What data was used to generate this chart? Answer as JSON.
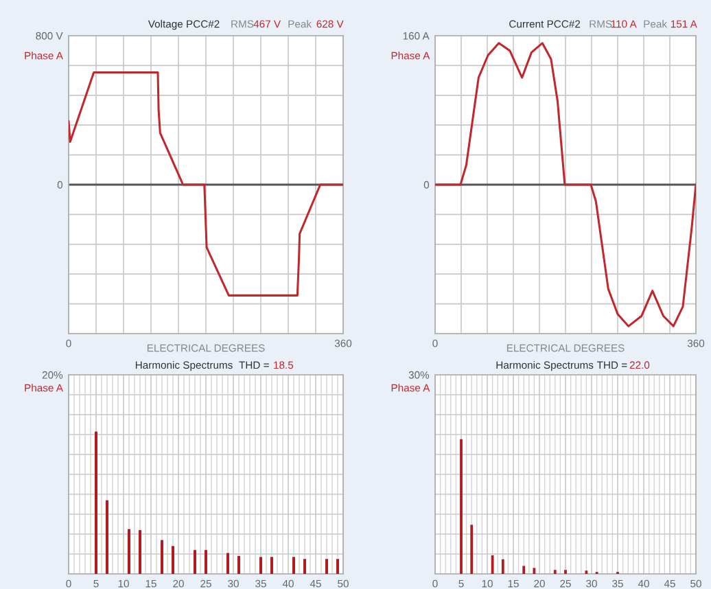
{
  "chart_data": [
    {
      "type": "line",
      "title": "Voltage PCC#2",
      "ylabel": "Phase A",
      "xlabel": "ELECTRICAL DEGREES",
      "annotations": [
        "RMS",
        "467 V",
        "Peak",
        "628 V"
      ],
      "series": [
        {
          "color": "#c0282d",
          "x": [
            0,
            2,
            33,
            117,
            118,
            120,
            150,
            178,
            181,
            210,
            300,
            302,
            303,
            330,
            360
          ],
          "values": [
            340,
            230,
            603,
            603,
            400,
            278,
            0,
            0,
            -337,
            -595,
            -595,
            -400,
            -263,
            0,
            0
          ]
        }
      ],
      "xlim": [
        0,
        360
      ],
      "xticks": [
        0,
        {
          "value": 36,
          "label": null
        },
        {
          "value": 72,
          "label": null
        },
        {
          "value": 108,
          "label": null
        },
        {
          "value": 144,
          "label": null
        },
        {
          "value": 180,
          "label": null
        },
        {
          "value": 216,
          "label": null
        },
        {
          "value": 252,
          "label": null
        },
        {
          "value": 288,
          "label": null
        },
        {
          "value": 324,
          "label": null
        },
        360
      ],
      "ylim": [
        -800,
        800
      ],
      "yticks": [
        {
          "value": -800,
          "label": null
        },
        {
          "value": -640,
          "label": null
        },
        {
          "value": -480,
          "label": null
        },
        {
          "value": -320,
          "label": null
        },
        {
          "value": -160,
          "label": null
        },
        0,
        {
          "value": 160,
          "label": null
        },
        {
          "value": 320,
          "label": null
        },
        {
          "value": 480,
          "label": null
        },
        {
          "value": 640,
          "label": null
        },
        {
          "value": 800,
          "label": "800 V"
        }
      ],
      "ref_lines": [
        {
          "axis": "y",
          "value": 0,
          "color": "#555555"
        }
      ],
      "grid": true,
      "legend": false
    },
    {
      "type": "line",
      "title": "Current PCC#2",
      "ylabel": "Phase A",
      "xlabel": "ELECTRICAL DEGREES",
      "annotations": [
        "RMS",
        "110 A",
        "Peak",
        "151 A"
      ],
      "series": [
        {
          "color": "#c0282d",
          "x": [
            0,
            35,
            43,
            60,
            73,
            88,
            103,
            120,
            133,
            148,
            160,
            169,
            179,
            215,
            222,
            239,
            252,
            267,
            285,
            300,
            315,
            329,
            342,
            354,
            360
          ],
          "values": [
            0,
            0,
            21,
            115,
            139,
            152,
            144,
            115,
            142,
            152,
            135,
            90,
            0,
            0,
            -18,
            -112,
            -139,
            -152,
            -141,
            -114,
            -141,
            -152,
            -131,
            -48,
            0
          ]
        }
      ],
      "xlim": [
        0,
        360
      ],
      "xticks": [
        0,
        {
          "value": 36,
          "label": null
        },
        {
          "value": 72,
          "label": null
        },
        {
          "value": 108,
          "label": null
        },
        {
          "value": 144,
          "label": null
        },
        {
          "value": 180,
          "label": null
        },
        {
          "value": 216,
          "label": null
        },
        {
          "value": 252,
          "label": null
        },
        {
          "value": 288,
          "label": null
        },
        {
          "value": 324,
          "label": null
        },
        360
      ],
      "ylim": [
        -160,
        160
      ],
      "yticks": [
        {
          "value": -160,
          "label": null
        },
        {
          "value": -128,
          "label": null
        },
        {
          "value": -96,
          "label": null
        },
        {
          "value": -64,
          "label": null
        },
        {
          "value": -32,
          "label": null
        },
        0,
        {
          "value": 32,
          "label": null
        },
        {
          "value": 64,
          "label": null
        },
        {
          "value": 96,
          "label": null
        },
        {
          "value": 128,
          "label": null
        },
        {
          "value": 160,
          "label": "160 A"
        }
      ],
      "ref_lines": [
        {
          "axis": "y",
          "value": 0,
          "color": "#555555"
        }
      ],
      "grid": true,
      "legend": false
    },
    {
      "type": "bar",
      "title": "Harmonic Spectrums",
      "ylabel": "Phase A",
      "annotations": [
        "THD =",
        "18.5"
      ],
      "series": [
        {
          "color": "#b01c22",
          "x": [
            5,
            7,
            11,
            13,
            17,
            19,
            23,
            25,
            29,
            31,
            35,
            37,
            41,
            43,
            47,
            49
          ],
          "values": [
            14.3,
            7.4,
            4.5,
            4.4,
            3.4,
            2.8,
            2.4,
            2.4,
            2.1,
            1.8,
            1.7,
            1.7,
            1.7,
            1.5,
            1.5,
            1.5
          ]
        }
      ],
      "xlim": [
        0,
        50
      ],
      "xticks": [
        0,
        5,
        10,
        15,
        20,
        25,
        30,
        35,
        40,
        45,
        50
      ],
      "ylim": [
        0,
        20
      ],
      "yticks": [
        {
          "value": 0,
          "label": null
        },
        {
          "value": 2,
          "label": null
        },
        {
          "value": 4,
          "label": null
        },
        {
          "value": 6,
          "label": null
        },
        {
          "value": 8,
          "label": null
        },
        {
          "value": 10,
          "label": null
        },
        {
          "value": 12,
          "label": null
        },
        {
          "value": 14,
          "label": null
        },
        {
          "value": 16,
          "label": null
        },
        {
          "value": 18,
          "label": null
        },
        {
          "value": 20,
          "label": "20%"
        }
      ],
      "grid": true,
      "legend": false
    },
    {
      "type": "bar",
      "title": "Harmonic Spectrums",
      "ylabel": "Phase A",
      "annotations": [
        "THD =",
        "22.0"
      ],
      "series": [
        {
          "color": "#b01c22",
          "x": [
            5,
            7,
            11,
            13,
            17,
            19,
            23,
            25,
            29,
            31,
            35
          ],
          "values": [
            20.3,
            7.4,
            2.8,
            2.2,
            1.2,
            0.9,
            0.6,
            0.6,
            0.5,
            0.3,
            0.3
          ]
        }
      ],
      "xlim": [
        0,
        50
      ],
      "xticks": [
        0,
        5,
        10,
        15,
        20,
        25,
        30,
        35,
        40,
        45,
        50
      ],
      "ylim": [
        0,
        30
      ],
      "yticks": [
        {
          "value": 0,
          "label": null
        },
        {
          "value": 3,
          "label": null
        },
        {
          "value": 6,
          "label": null
        },
        {
          "value": 9,
          "label": null
        },
        {
          "value": 12,
          "label": null
        },
        {
          "value": 15,
          "label": null
        },
        {
          "value": 18,
          "label": null
        },
        {
          "value": 21,
          "label": null
        },
        {
          "value": 24,
          "label": null
        },
        {
          "value": 27,
          "label": null
        },
        {
          "value": 30,
          "label": "30%"
        }
      ],
      "grid": true,
      "legend": false
    }
  ]
}
